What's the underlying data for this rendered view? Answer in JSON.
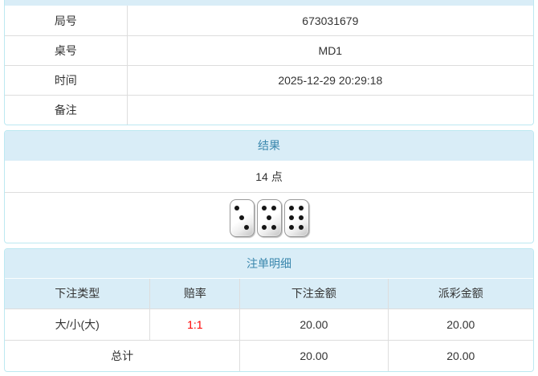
{
  "colors": {
    "panel_border": "#bce8f1",
    "header_bg": "#d9edf7",
    "header_text": "#3a87ad",
    "body_text": "#333333",
    "divider": "#dddddd",
    "odds_red": "#ff0000"
  },
  "info_table": {
    "rows": [
      {
        "label": "局号",
        "value": "673031679"
      },
      {
        "label": "桌号",
        "value": "MD1"
      },
      {
        "label": "时间",
        "value": "2025-12-29 20:29:18"
      },
      {
        "label": "备注",
        "value": ""
      }
    ]
  },
  "result_panel": {
    "title": "结果",
    "points_text": "14 点",
    "dice": [
      3,
      5,
      6
    ]
  },
  "bets_panel": {
    "title": "注单明细",
    "columns": [
      "下注类型",
      "赔率",
      "下注金额",
      "派彩金额"
    ],
    "rows": [
      {
        "bet_type": "大/小(大)",
        "odds": "1:1",
        "bet_amount": "20.00",
        "payout_amount": "20.00"
      }
    ],
    "total": {
      "label": "总计",
      "bet_amount": "20.00",
      "payout_amount": "20.00"
    }
  }
}
